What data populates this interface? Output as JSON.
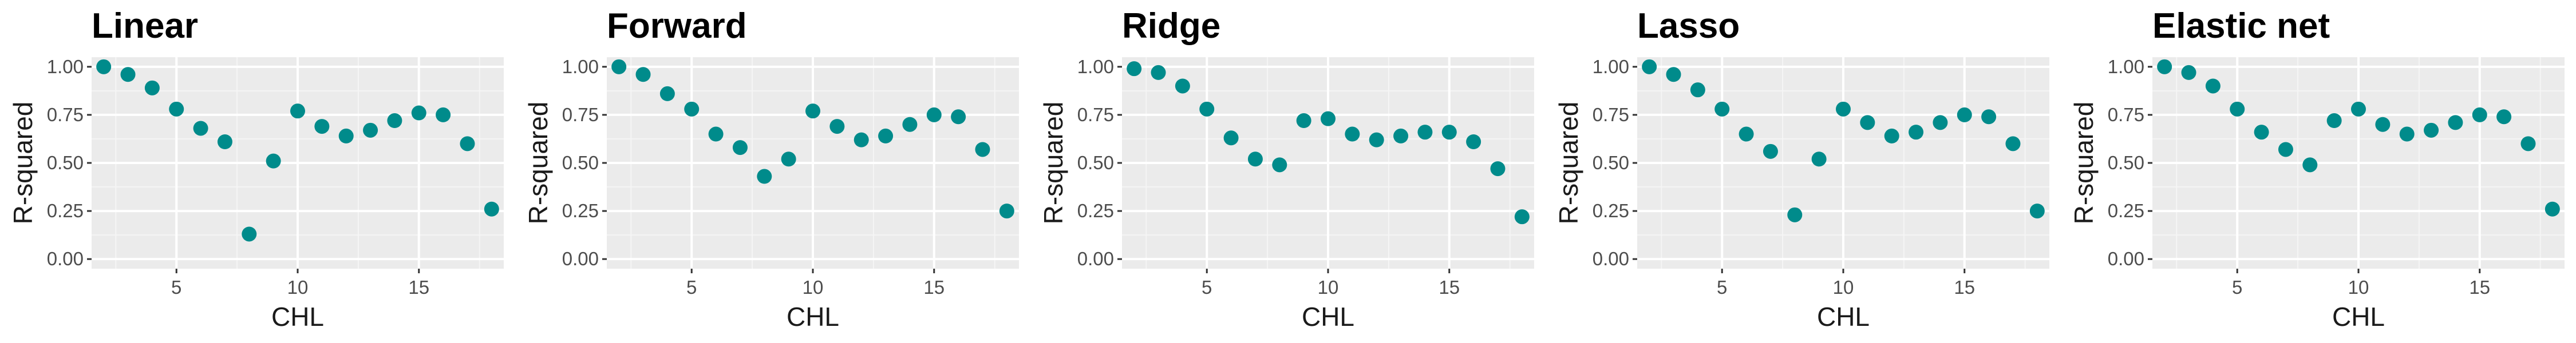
{
  "chart_data": [
    {
      "type": "scatter",
      "title": "Linear",
      "xlabel": "CHL",
      "ylabel": "R-squared",
      "xlim": [
        1.5,
        18.5
      ],
      "ylim": [
        -0.05,
        1.05
      ],
      "xticks": [
        5,
        10,
        15
      ],
      "yticks": [
        "0.00",
        "0.25",
        "0.50",
        "0.75",
        "1.00"
      ],
      "grid": true,
      "color": "#008b8b",
      "points": [
        {
          "x": 2,
          "y": 1.0
        },
        {
          "x": 3,
          "y": 0.96
        },
        {
          "x": 4,
          "y": 0.89
        },
        {
          "x": 5,
          "y": 0.78
        },
        {
          "x": 6,
          "y": 0.68
        },
        {
          "x": 7,
          "y": 0.61
        },
        {
          "x": 8,
          "y": 0.13
        },
        {
          "x": 9,
          "y": 0.51
        },
        {
          "x": 10,
          "y": 0.77
        },
        {
          "x": 11,
          "y": 0.69
        },
        {
          "x": 12,
          "y": 0.64
        },
        {
          "x": 13,
          "y": 0.67
        },
        {
          "x": 14,
          "y": 0.72
        },
        {
          "x": 15,
          "y": 0.76
        },
        {
          "x": 16,
          "y": 0.75
        },
        {
          "x": 17,
          "y": 0.6
        },
        {
          "x": 18,
          "y": 0.26
        }
      ]
    },
    {
      "type": "scatter",
      "title": "Forward",
      "xlabel": "CHL",
      "ylabel": "R-squared",
      "xlim": [
        1.5,
        18.5
      ],
      "ylim": [
        -0.05,
        1.05
      ],
      "xticks": [
        5,
        10,
        15
      ],
      "yticks": [
        "0.00",
        "0.25",
        "0.50",
        "0.75",
        "1.00"
      ],
      "grid": true,
      "color": "#008b8b",
      "points": [
        {
          "x": 2,
          "y": 1.0
        },
        {
          "x": 3,
          "y": 0.96
        },
        {
          "x": 4,
          "y": 0.86
        },
        {
          "x": 5,
          "y": 0.78
        },
        {
          "x": 6,
          "y": 0.65
        },
        {
          "x": 7,
          "y": 0.58
        },
        {
          "x": 8,
          "y": 0.43
        },
        {
          "x": 9,
          "y": 0.52
        },
        {
          "x": 10,
          "y": 0.77
        },
        {
          "x": 11,
          "y": 0.69
        },
        {
          "x": 12,
          "y": 0.62
        },
        {
          "x": 13,
          "y": 0.64
        },
        {
          "x": 14,
          "y": 0.7
        },
        {
          "x": 15,
          "y": 0.75
        },
        {
          "x": 16,
          "y": 0.74
        },
        {
          "x": 17,
          "y": 0.57
        },
        {
          "x": 18,
          "y": 0.25
        }
      ]
    },
    {
      "type": "scatter",
      "title": "Ridge",
      "xlabel": "CHL",
      "ylabel": "R-squared",
      "xlim": [
        1.5,
        18.5
      ],
      "ylim": [
        -0.05,
        1.05
      ],
      "xticks": [
        5,
        10,
        15
      ],
      "yticks": [
        "0.00",
        "0.25",
        "0.50",
        "0.75",
        "1.00"
      ],
      "grid": true,
      "color": "#008b8b",
      "points": [
        {
          "x": 2,
          "y": 0.99
        },
        {
          "x": 3,
          "y": 0.97
        },
        {
          "x": 4,
          "y": 0.9
        },
        {
          "x": 5,
          "y": 0.78
        },
        {
          "x": 6,
          "y": 0.63
        },
        {
          "x": 7,
          "y": 0.52
        },
        {
          "x": 8,
          "y": 0.49
        },
        {
          "x": 9,
          "y": 0.72
        },
        {
          "x": 10,
          "y": 0.73
        },
        {
          "x": 11,
          "y": 0.65
        },
        {
          "x": 12,
          "y": 0.62
        },
        {
          "x": 13,
          "y": 0.64
        },
        {
          "x": 14,
          "y": 0.66
        },
        {
          "x": 15,
          "y": 0.66
        },
        {
          "x": 16,
          "y": 0.61
        },
        {
          "x": 17,
          "y": 0.47
        },
        {
          "x": 18,
          "y": 0.22
        }
      ]
    },
    {
      "type": "scatter",
      "title": "Lasso",
      "xlabel": "CHL",
      "ylabel": "R-squared",
      "xlim": [
        1.5,
        18.5
      ],
      "ylim": [
        -0.05,
        1.05
      ],
      "xticks": [
        5,
        10,
        15
      ],
      "yticks": [
        "0.00",
        "0.25",
        "0.50",
        "0.75",
        "1.00"
      ],
      "grid": true,
      "color": "#008b8b",
      "points": [
        {
          "x": 2,
          "y": 1.0
        },
        {
          "x": 3,
          "y": 0.96
        },
        {
          "x": 4,
          "y": 0.88
        },
        {
          "x": 5,
          "y": 0.78
        },
        {
          "x": 6,
          "y": 0.65
        },
        {
          "x": 7,
          "y": 0.56
        },
        {
          "x": 8,
          "y": 0.23
        },
        {
          "x": 9,
          "y": 0.52
        },
        {
          "x": 10,
          "y": 0.78
        },
        {
          "x": 11,
          "y": 0.71
        },
        {
          "x": 12,
          "y": 0.64
        },
        {
          "x": 13,
          "y": 0.66
        },
        {
          "x": 14,
          "y": 0.71
        },
        {
          "x": 15,
          "y": 0.75
        },
        {
          "x": 16,
          "y": 0.74
        },
        {
          "x": 17,
          "y": 0.6
        },
        {
          "x": 18,
          "y": 0.25
        }
      ]
    },
    {
      "type": "scatter",
      "title": "Elastic net",
      "xlabel": "CHL",
      "ylabel": "R-squared",
      "xlim": [
        1.5,
        18.5
      ],
      "ylim": [
        -0.05,
        1.05
      ],
      "xticks": [
        5,
        10,
        15
      ],
      "yticks": [
        "0.00",
        "0.25",
        "0.50",
        "0.75",
        "1.00"
      ],
      "grid": true,
      "color": "#008b8b",
      "points": [
        {
          "x": 2,
          "y": 1.0
        },
        {
          "x": 3,
          "y": 0.97
        },
        {
          "x": 4,
          "y": 0.9
        },
        {
          "x": 5,
          "y": 0.78
        },
        {
          "x": 6,
          "y": 0.66
        },
        {
          "x": 7,
          "y": 0.57
        },
        {
          "x": 8,
          "y": 0.49
        },
        {
          "x": 9,
          "y": 0.72
        },
        {
          "x": 10,
          "y": 0.78
        },
        {
          "x": 11,
          "y": 0.7
        },
        {
          "x": 12,
          "y": 0.65
        },
        {
          "x": 13,
          "y": 0.67
        },
        {
          "x": 14,
          "y": 0.71
        },
        {
          "x": 15,
          "y": 0.75
        },
        {
          "x": 16,
          "y": 0.74
        },
        {
          "x": 17,
          "y": 0.6
        },
        {
          "x": 18,
          "y": 0.26
        }
      ]
    }
  ]
}
